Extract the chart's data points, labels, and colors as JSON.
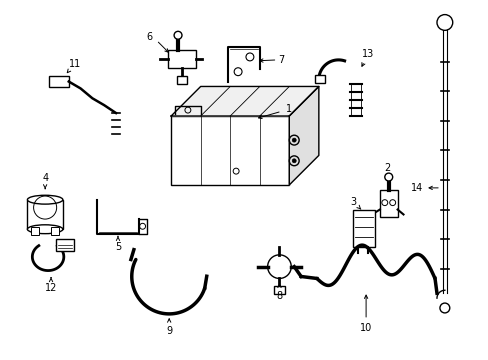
{
  "background_color": "#ffffff",
  "line_color": "#000000",
  "lw": 1.0,
  "figsize": [
    4.89,
    3.6
  ],
  "dpi": 100
}
